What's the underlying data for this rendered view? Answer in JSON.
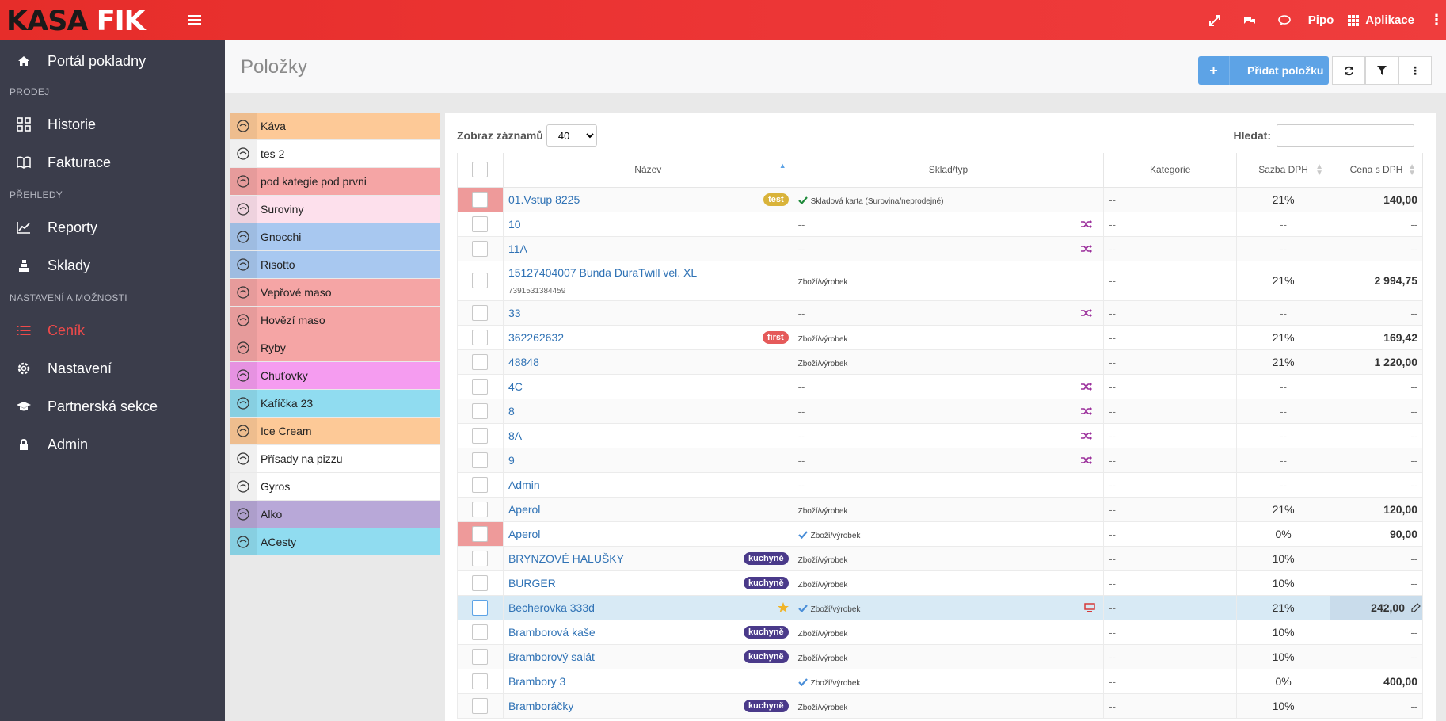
{
  "app": {
    "logo_a": "KASA",
    "logo_b": "FIK"
  },
  "topbar": {
    "user": "Pipo",
    "apps": "Aplikace"
  },
  "sidebar": {
    "portal": "Portál pokladny",
    "sec_prodej": "PRODEJ",
    "historie": "Historie",
    "fakturace": "Fakturace",
    "sec_prehledy": "PŘEHLEDY",
    "reporty": "Reporty",
    "sklady": "Sklady",
    "sec_nastaveni": "NASTAVENÍ A MOŽNOSTI",
    "cenik": "Ceník",
    "nastaveni": "Nastavení",
    "partner": "Partnerská sekce",
    "admin": "Admin"
  },
  "page": {
    "title": "Položky",
    "add_button": "Přidat položku"
  },
  "categories": [
    {
      "label": "Káva",
      "color": "#fdc997"
    },
    {
      "label": "tes 2",
      "color": "#ffffff"
    },
    {
      "label": "pod kategie pod prvni",
      "color": "#f5a5a5"
    },
    {
      "label": "Suroviny",
      "color": "#fde0ec"
    },
    {
      "label": "Gnocchi",
      "color": "#a8c8f0"
    },
    {
      "label": "Risotto",
      "color": "#a8c8f0"
    },
    {
      "label": "Vepřové maso",
      "color": "#f5a5a5"
    },
    {
      "label": "Hovězí maso",
      "color": "#f5a5a5"
    },
    {
      "label": "Ryby",
      "color": "#f5a5a5"
    },
    {
      "label": "Chuťovky",
      "color": "#f59cf0"
    },
    {
      "label": "Kafíčka 23",
      "color": "#90dcf0"
    },
    {
      "label": "Ice Cream",
      "color": "#fdc997"
    },
    {
      "label": "Přísady na pizzu",
      "color": "#ffffff"
    },
    {
      "label": "Gyros",
      "color": "#ffffff"
    },
    {
      "label": "Alko",
      "color": "#b8a8d8"
    },
    {
      "label": "ACesty",
      "color": "#90dcf0"
    }
  ],
  "table": {
    "show_label": "Zobraz záznamů",
    "show_value": "40",
    "search_label": "Hledat:",
    "headers": {
      "name": "Název",
      "sklad": "Sklad/typ",
      "kategorie": "Kategorie",
      "dph": "Sazba DPH",
      "cena": "Cena s DPH"
    },
    "rows": [
      {
        "name": "01.Vstup 8225",
        "sub": "",
        "tag": "test",
        "tagColor": "#d9b33a",
        "sklad": "Skladová karta (Surovina/neprodejné)",
        "check": "green",
        "shuffle": false,
        "kat": "--",
        "dph": "21%",
        "cena": "140,00",
        "red": true,
        "hl": false
      },
      {
        "name": "10",
        "sub": "",
        "tag": "",
        "sklad": "--",
        "check": "",
        "shuffle": true,
        "kat": "--",
        "dph": "--",
        "cena": "--",
        "red": false,
        "hl": false
      },
      {
        "name": "11A",
        "sub": "",
        "tag": "",
        "sklad": "--",
        "check": "",
        "shuffle": true,
        "kat": "--",
        "dph": "--",
        "cena": "--",
        "red": false,
        "hl": false
      },
      {
        "name": "15127404007 Bunda DuraTwill vel. XL",
        "sub": "7391531384459",
        "tag": "",
        "sklad": "Zboží/výrobek",
        "check": "",
        "shuffle": false,
        "kat": "--",
        "dph": "21%",
        "cena": "2 994,75",
        "red": false,
        "hl": false
      },
      {
        "name": "33",
        "sub": "",
        "tag": "",
        "sklad": "--",
        "check": "",
        "shuffle": true,
        "kat": "--",
        "dph": "--",
        "cena": "--",
        "red": false,
        "hl": false
      },
      {
        "name": "362262632",
        "sub": "",
        "tag": "first",
        "tagColor": "#e55a5a",
        "sklad": "Zboží/výrobek",
        "check": "",
        "shuffle": false,
        "kat": "--",
        "dph": "21%",
        "cena": "169,42",
        "red": false,
        "hl": false
      },
      {
        "name": "48848",
        "sub": "",
        "tag": "",
        "sklad": "Zboží/výrobek",
        "check": "",
        "shuffle": false,
        "kat": "--",
        "dph": "21%",
        "cena": "1 220,00",
        "red": false,
        "hl": false
      },
      {
        "name": "4C",
        "sub": "",
        "tag": "",
        "sklad": "--",
        "check": "",
        "shuffle": true,
        "kat": "--",
        "dph": "--",
        "cena": "--",
        "red": false,
        "hl": false
      },
      {
        "name": "8",
        "sub": "",
        "tag": "",
        "sklad": "--",
        "check": "",
        "shuffle": true,
        "kat": "--",
        "dph": "--",
        "cena": "--",
        "red": false,
        "hl": false
      },
      {
        "name": "8A",
        "sub": "",
        "tag": "",
        "sklad": "--",
        "check": "",
        "shuffle": true,
        "kat": "--",
        "dph": "--",
        "cena": "--",
        "red": false,
        "hl": false
      },
      {
        "name": "9",
        "sub": "",
        "tag": "",
        "sklad": "--",
        "check": "",
        "shuffle": true,
        "kat": "--",
        "dph": "--",
        "cena": "--",
        "red": false,
        "hl": false
      },
      {
        "name": "Admin",
        "sub": "",
        "tag": "",
        "sklad": "--",
        "check": "",
        "shuffle": false,
        "kat": "--",
        "dph": "--",
        "cena": "--",
        "red": false,
        "hl": false
      },
      {
        "name": "Aperol",
        "sub": "",
        "tag": "",
        "sklad": "Zboží/výrobek",
        "check": "",
        "shuffle": false,
        "kat": "--",
        "dph": "21%",
        "cena": "120,00",
        "red": false,
        "hl": false
      },
      {
        "name": "Aperol",
        "sub": "",
        "tag": "",
        "sklad": "Zboží/výrobek",
        "check": "blue",
        "shuffle": false,
        "kat": "--",
        "dph": "0%",
        "cena": "90,00",
        "red": true,
        "hl": false
      },
      {
        "name": "BRYNZOVÉ HALUŠKY",
        "sub": "",
        "tag": "kuchyně",
        "tagColor": "#4a3a8a",
        "sklad": "Zboží/výrobek",
        "check": "",
        "shuffle": false,
        "kat": "--",
        "dph": "10%",
        "cena": "--",
        "red": false,
        "hl": false
      },
      {
        "name": "BURGER",
        "sub": "",
        "tag": "kuchyně",
        "tagColor": "#4a3a8a",
        "sklad": "Zboží/výrobek",
        "check": "",
        "shuffle": false,
        "kat": "--",
        "dph": "10%",
        "cena": "--",
        "red": false,
        "hl": false
      },
      {
        "name": "Becherovka 333d",
        "sub": "",
        "tag": "",
        "star": true,
        "sklad": "Zboží/výrobek",
        "check": "blue",
        "shuffle": false,
        "monitor": true,
        "kat": "--",
        "dph": "21%",
        "cena": "242,00",
        "edit": true,
        "red": false,
        "hl": true
      },
      {
        "name": "Bramborová kaše",
        "sub": "",
        "tag": "kuchyně",
        "tagColor": "#4a3a8a",
        "sklad": "Zboží/výrobek",
        "check": "",
        "shuffle": false,
        "kat": "--",
        "dph": "10%",
        "cena": "--",
        "red": false,
        "hl": false
      },
      {
        "name": "Bramborový salát",
        "sub": "",
        "tag": "kuchyně",
        "tagColor": "#4a3a8a",
        "sklad": "Zboží/výrobek",
        "check": "",
        "shuffle": false,
        "kat": "--",
        "dph": "10%",
        "cena": "--",
        "red": false,
        "hl": false
      },
      {
        "name": "Brambory 3",
        "sub": "",
        "tag": "",
        "sklad": "Zboží/výrobek",
        "check": "blue",
        "shuffle": false,
        "kat": "--",
        "dph": "0%",
        "cena": "400,00",
        "red": false,
        "hl": false
      },
      {
        "name": "Bramboráčky",
        "sub": "",
        "tag": "kuchyně",
        "tagColor": "#4a3a8a",
        "sklad": "Zboží/výrobek",
        "check": "",
        "shuffle": false,
        "kat": "--",
        "dph": "10%",
        "cena": "--",
        "red": false,
        "hl": false
      }
    ]
  }
}
